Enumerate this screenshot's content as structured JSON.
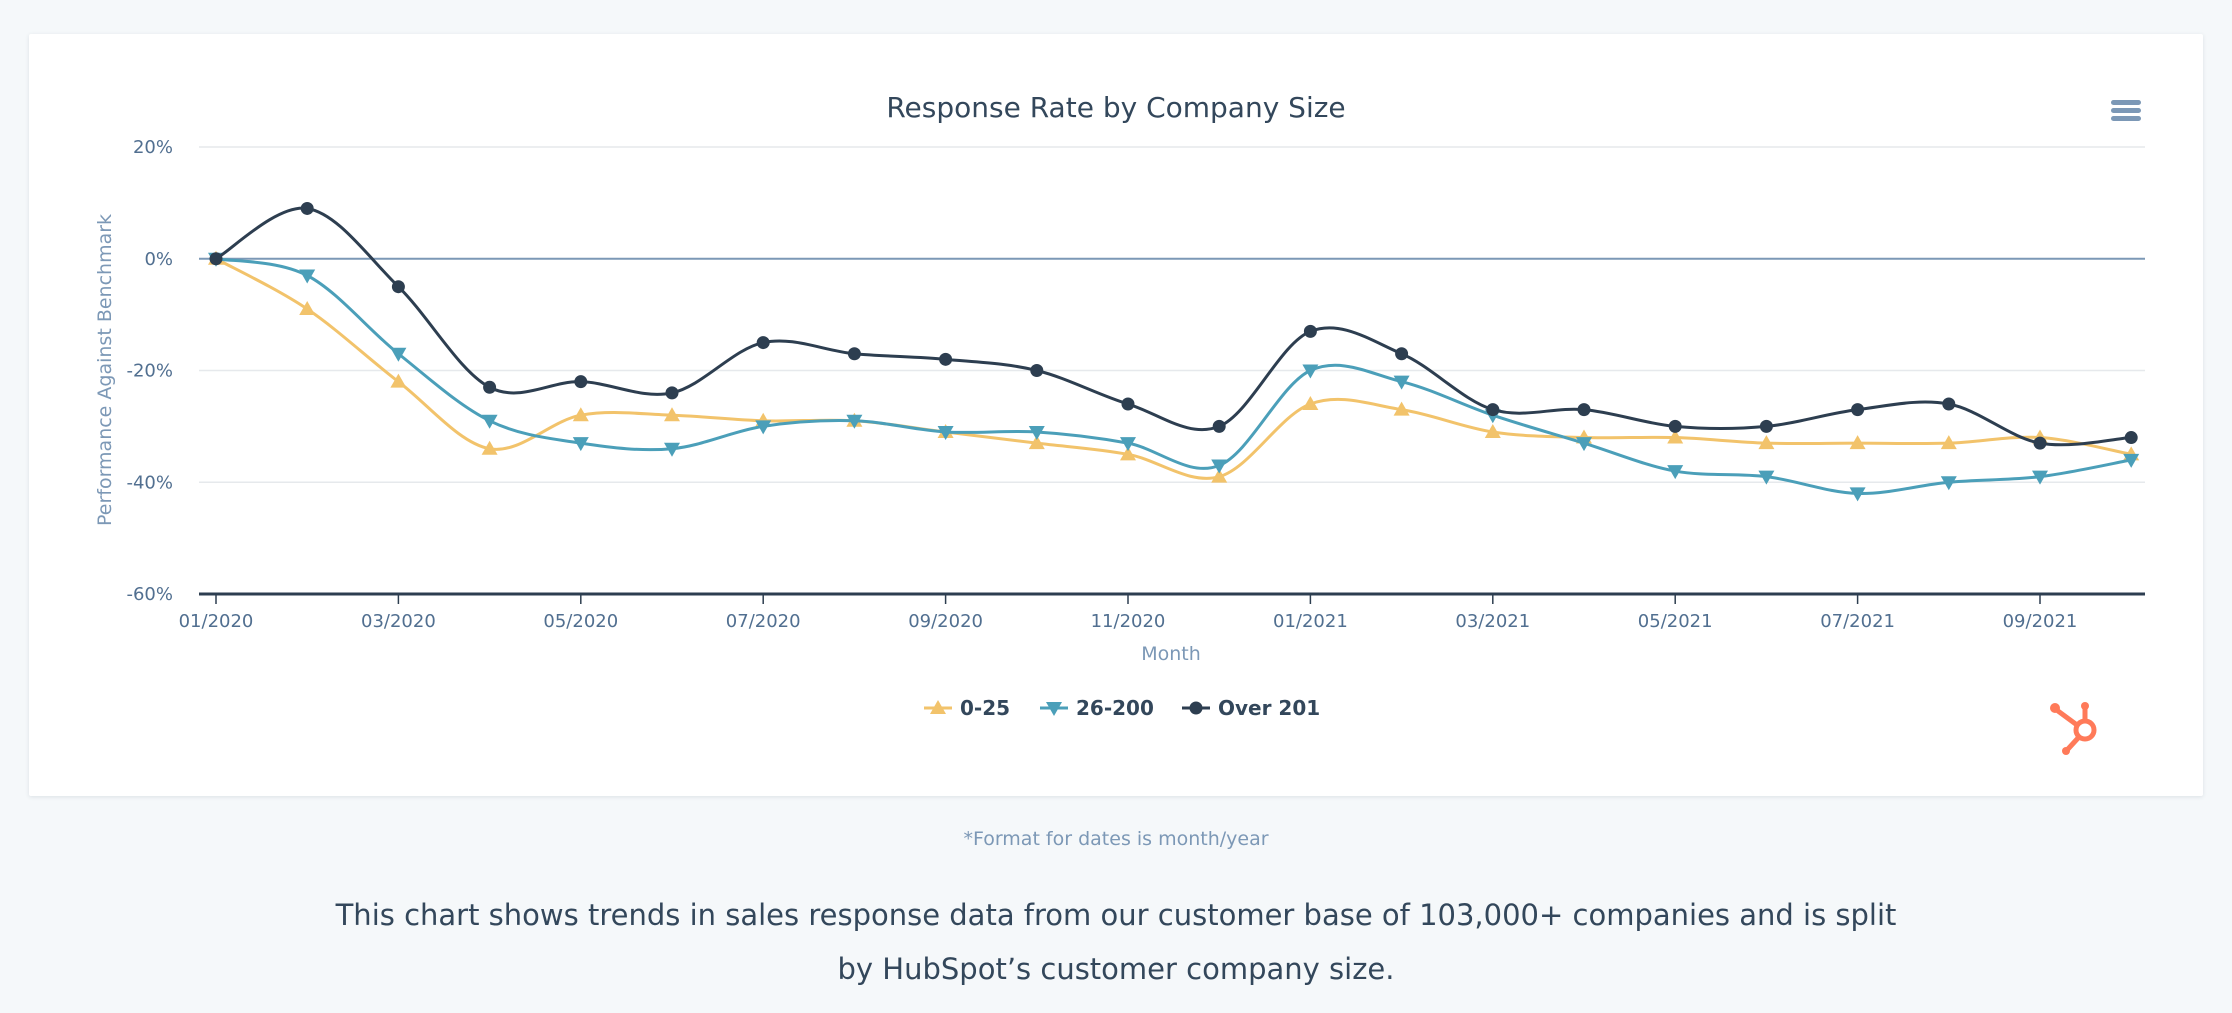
{
  "chart_data": {
    "type": "line",
    "title": "Response Rate by Company Size",
    "xlabel": "Month",
    "ylabel": "Performance Against Benchmark",
    "ylim": [
      -60,
      20
    ],
    "y_ticks": [
      "20%",
      "0%",
      "-20%",
      "-40%",
      "-60%"
    ],
    "y_tick_values": [
      20,
      0,
      -20,
      -40,
      -60
    ],
    "categories": [
      "01/2020",
      "02/2020",
      "03/2020",
      "04/2020",
      "05/2020",
      "06/2020",
      "07/2020",
      "08/2020",
      "09/2020",
      "10/2020",
      "11/2020",
      "12/2020",
      "01/2021",
      "02/2021",
      "03/2021",
      "04/2021",
      "05/2021",
      "06/2021",
      "07/2021",
      "08/2021",
      "09/2021",
      "10/2021"
    ],
    "x_tick_labels": [
      "01/2020",
      "03/2020",
      "05/2020",
      "07/2020",
      "09/2020",
      "11/2020",
      "01/2021",
      "03/2021",
      "05/2021",
      "07/2021",
      "09/2021"
    ],
    "grid": true,
    "legend_position": "bottom-center",
    "series": [
      {
        "name": "0-25",
        "color": "#f2c36b",
        "marker": "triangle-up",
        "values": [
          0,
          -9,
          -22,
          -34,
          -28,
          -28,
          -29,
          -29,
          -31,
          -33,
          -35,
          -39,
          -26,
          -27,
          -31,
          -32,
          -32,
          -33,
          -33,
          -33,
          -32,
          -35
        ]
      },
      {
        "name": "26-200",
        "color": "#4b9fb9",
        "marker": "triangle-down",
        "values": [
          0,
          -3,
          -17,
          -29,
          -33,
          -34,
          -30,
          -29,
          -31,
          -31,
          -33,
          -37,
          -20,
          -22,
          -28,
          -33,
          -38,
          -39,
          -42,
          -40,
          -39,
          -36
        ]
      },
      {
        "name": "Over 201",
        "color": "#2d3e50",
        "marker": "circle",
        "values": [
          0,
          9,
          -5,
          -23,
          -22,
          -24,
          -15,
          -17,
          -18,
          -20,
          -26,
          -30,
          -13,
          -17,
          -27,
          -27,
          -30,
          -30,
          -27,
          -26,
          -33,
          -32
        ]
      }
    ]
  },
  "page": {
    "footnote": "*Format for dates is month/year",
    "description": "This chart shows trends in sales response data from our customer base of 103,000+ companies and is split by HubSpot’s customer company size."
  },
  "icons": {
    "menu": "hamburger-menu-icon",
    "logo": "hubspot-sprocket-logo"
  },
  "colors": {
    "background": "#f5f8fa",
    "card": "#ffffff",
    "zero_line": "#7c98b6",
    "axis_line": "#2d3e50",
    "logo": "#ff7a59"
  }
}
